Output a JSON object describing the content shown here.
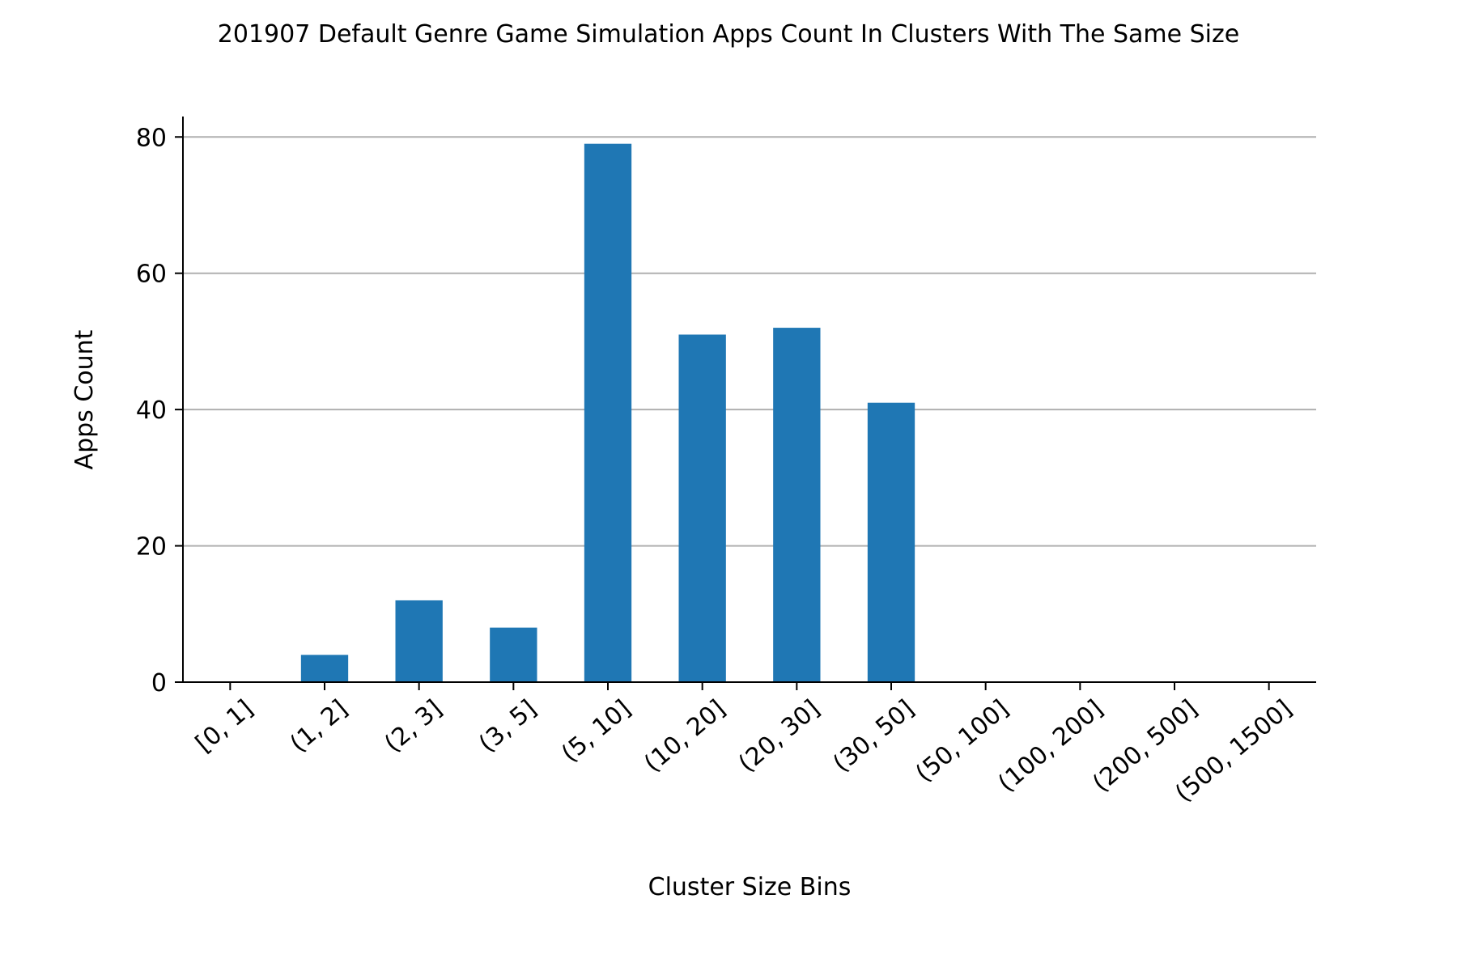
{
  "chart_data": {
    "type": "bar",
    "title": "201907 Default Genre Game Simulation Apps Count In Clusters With The Same Size",
    "xlabel": "Cluster Size Bins",
    "ylabel": "Apps Count",
    "categories": [
      "[0, 1]",
      "(1, 2]",
      "(2, 3]",
      "(3, 5]",
      "(5, 10]",
      "(10, 20]",
      "(20, 30]",
      "(30, 50]",
      "(50, 100]",
      "(100, 200]",
      "(200, 500]",
      "(500, 1500]"
    ],
    "values": [
      0,
      4,
      12,
      8,
      79,
      51,
      52,
      41,
      0,
      0,
      0,
      0
    ],
    "ylim": [
      0,
      83
    ],
    "yticks": [
      0,
      20,
      40,
      60,
      80
    ],
    "grid": "horizontal",
    "bar_color": "#1f77b4",
    "grid_color": "#b0b0b0"
  }
}
